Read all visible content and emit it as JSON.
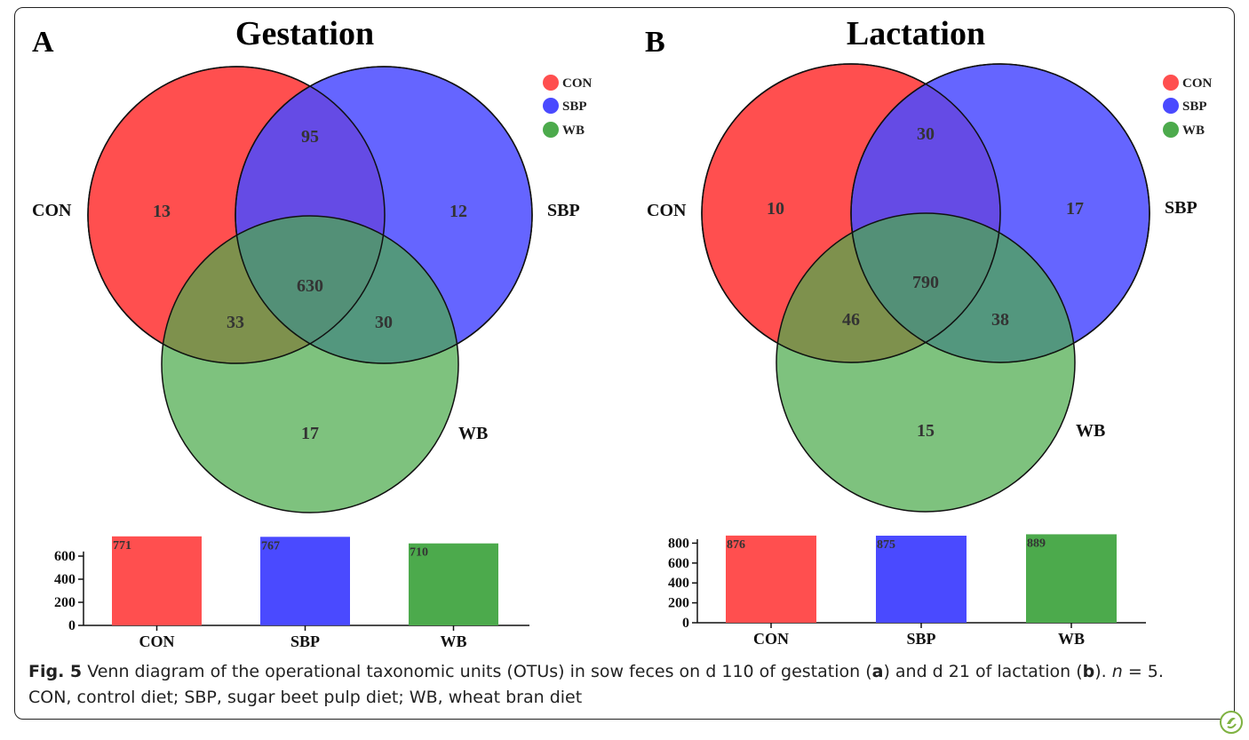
{
  "panels": [
    {
      "letter": "A",
      "title": "Gestation",
      "set_labels": [
        "CON",
        "SBP",
        "WB"
      ],
      "legend": [
        "CON",
        "SBP",
        "WB"
      ],
      "regions": {
        "con_only": "13",
        "sbp_only": "12",
        "wb_only": "17",
        "con_sbp": "95",
        "con_wb": "33",
        "sbp_wb": "30",
        "all": "630"
      },
      "bar_chart": {
        "categories": [
          "CON",
          "SBP",
          "WB"
        ],
        "values": [
          771,
          767,
          710
        ],
        "value_labels": [
          "771",
          "767",
          "710"
        ],
        "ticks": [
          "0",
          "200",
          "400",
          "600"
        ]
      }
    },
    {
      "letter": "B",
      "title": "Lactation",
      "set_labels": [
        "CON",
        "SBP",
        "WB"
      ],
      "legend": [
        "CON",
        "SBP",
        "WB"
      ],
      "regions": {
        "con_only": "10",
        "sbp_only": "17",
        "wb_only": "15",
        "con_sbp": "30",
        "con_wb": "46",
        "sbp_wb": "38",
        "all": "790"
      },
      "bar_chart": {
        "categories": [
          "CON",
          "SBP",
          "WB"
        ],
        "values": [
          876,
          875,
          889
        ],
        "value_labels": [
          "876",
          "875",
          "889"
        ],
        "ticks": [
          "0",
          "200",
          "400",
          "600",
          "800"
        ]
      }
    }
  ],
  "colors": {
    "con": "#ff4f4f",
    "sbp": "#4a4aff",
    "wb": "#4caa4c"
  },
  "caption": {
    "fig_label": "Fig. 5",
    "text_1": " Venn diagram of the operational taxonomic units (OTUs) in sow feces on d 110 of gestation (",
    "a": "a",
    "text_2": ") and d 21 of lactation (",
    "b": "b",
    "text_3": "). ",
    "n": "n",
    "text_4": " = 5. CON, control diet; SBP, sugar beet pulp diet; WB, wheat bran diet"
  }
}
